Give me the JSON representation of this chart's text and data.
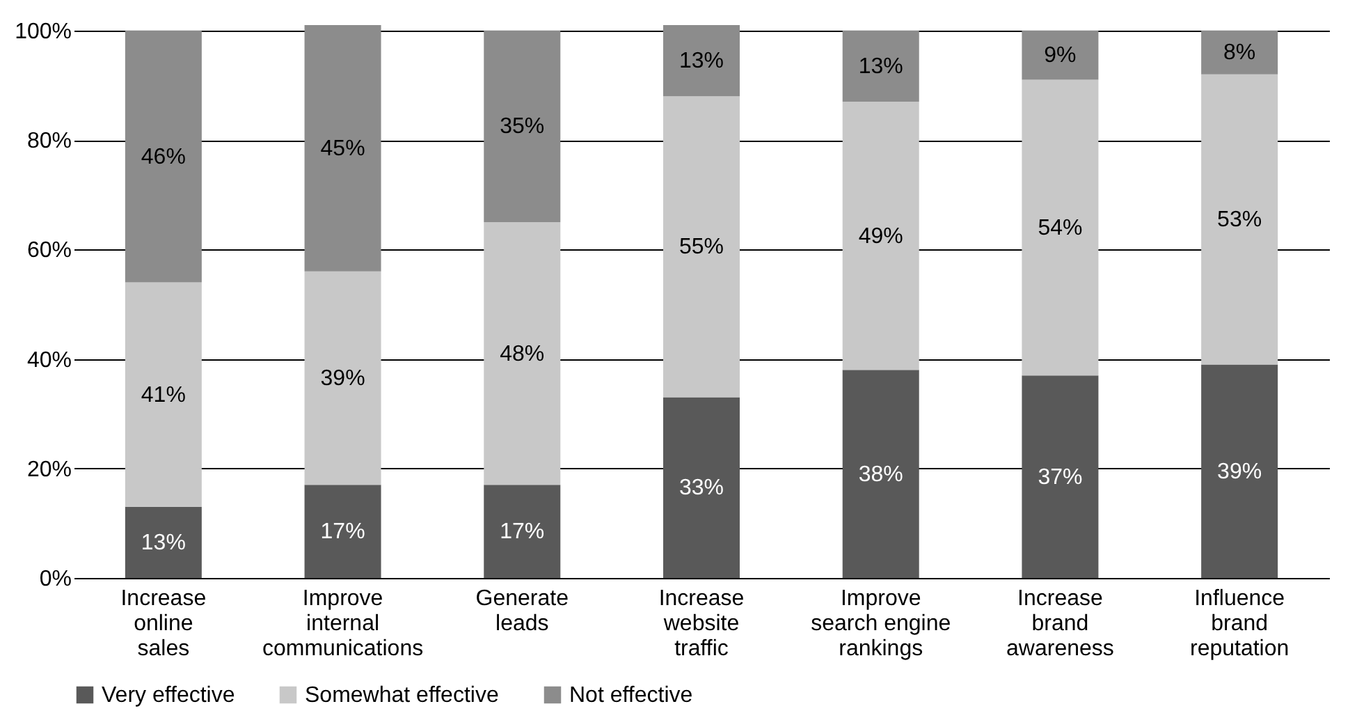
{
  "chart_data": {
    "type": "bar",
    "stacked": true,
    "categories": [
      "Increase\nonline\nsales",
      "Improve\ninternal\ncommunications",
      "Generate\nleads",
      "Increase\nwebsite\ntraffic",
      "Improve\nsearch engine\nrankings",
      "Increase\nbrand\nawareness",
      "Influence\nbrand\nreputation"
    ],
    "series": [
      {
        "name": "Very effective",
        "color": "#595959",
        "values": [
          13,
          17,
          17,
          33,
          38,
          37,
          39
        ],
        "value_labels": [
          "13%",
          "17%",
          "17%",
          "33%",
          "38%",
          "37%",
          "39%"
        ]
      },
      {
        "name": "Somewhat effective",
        "color": "#c8c8c8",
        "values": [
          41,
          39,
          48,
          55,
          49,
          54,
          53
        ],
        "value_labels": [
          "41%",
          "39%",
          "48%",
          "55%",
          "49%",
          "54%",
          "53%"
        ]
      },
      {
        "name": "Not effective",
        "color": "#8c8c8c",
        "values": [
          46,
          45,
          35,
          13,
          13,
          9,
          8
        ],
        "value_labels": [
          "46%",
          "45%",
          "35%",
          "13%",
          "13%",
          "9%",
          "8%"
        ]
      }
    ],
    "ylim": [
      0,
      101
    ],
    "yticks": [
      {
        "value": 0,
        "label": "0%"
      },
      {
        "value": 20,
        "label": "20%"
      },
      {
        "value": 40,
        "label": "40%"
      },
      {
        "value": 60,
        "label": "60%"
      },
      {
        "value": 80,
        "label": "80%"
      },
      {
        "value": 100,
        "label": "100%"
      }
    ],
    "grid": "y",
    "legend": "bottom"
  }
}
